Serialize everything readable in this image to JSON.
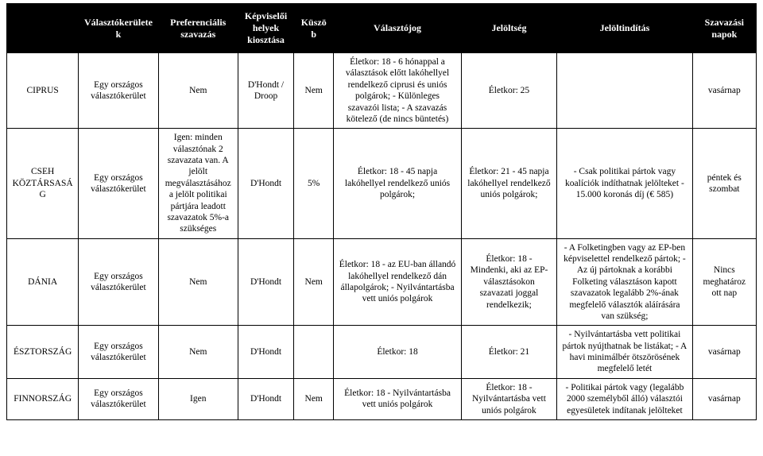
{
  "headers": [
    "",
    "Választókerületek",
    "Preferenciális szavazás",
    "Képviselői helyek kiosztása",
    "Küszöb",
    "Választójog",
    "Jelöltség",
    "Jelöltindítás",
    "Szavazási napok"
  ],
  "rows": [
    {
      "c0": "CIPRUS",
      "c1": "Egy országos választókerület",
      "c2": "Nem",
      "c3": "D'Hondt / Droop",
      "c4": "Nem",
      "c5": "Életkor: 18\n- 6 hónappal a választások előtt lakóhellyel rendelkező ciprusi és uniós polgárok;\n- Különleges szavazói lista;\n- A szavazás kötelező (de nincs büntetés)",
      "c6": "Életkor: 25",
      "c7": "",
      "c8": "vasárnap"
    },
    {
      "c0": "CSEH KÖZTÁRSASÁG",
      "c1": "Egy országos választókerület",
      "c2": "Igen: minden választónak 2 szavazata van. A jelölt megválasztásához a jelölt politikai pártjára leadott szavazatok 5%-a szükséges",
      "c3": "D'Hondt",
      "c4": "5%",
      "c5": "Életkor: 18\n- 45 napja lakóhellyel rendelkező uniós polgárok;",
      "c6": "Életkor: 21\n- 45 napja lakóhellyel rendelkező uniós polgárok;",
      "c7": "- Csak politikai pártok vagy koalíciók indíthatnak jelölteket\n- 15.000 koronás díj (€ 585)",
      "c8": "péntek és szombat"
    },
    {
      "c0": "DÁNIA",
      "c1": "Egy országos választókerület",
      "c2": "Nem",
      "c3": "D'Hondt",
      "c4": "Nem",
      "c5": "Életkor: 18\n- az EU-ban állandó lakóhellyel rendelkező dán állapolgárok;\n- Nyilvántartásba vett uniós polgárok",
      "c6": "Életkor: 18\n- Mindenki, aki az EP-választásokon szavazati joggal rendelkezik;",
      "c7": "- A Folketingben vagy az EP-ben képviselettel rendelkező pártok;\n- Az új pártoknak a korábbi Folketing választáson kapott szavazatok legalább 2%-ának megfelelő választók aláírására van szükség;",
      "c8": "Nincs meghatároz ott nap"
    },
    {
      "c0": "ÉSZTORSZÁG",
      "c1": "Egy országos választókerület",
      "c2": "Nem",
      "c3": "D'Hondt",
      "c4": "",
      "c5": "Életkor: 18",
      "c6": "Életkor: 21",
      "c7": "- Nyilvántartásba vett politikai pártok nyújthatnak be listákat;\n- A havi minimálbér ötszörösének megfelelő letét",
      "c8": "vasárnap"
    },
    {
      "c0": "FINNORSZÁG",
      "c1": "Egy országos választókerület",
      "c2": "Igen",
      "c3": "D'Hondt",
      "c4": "Nem",
      "c5": "Életkor: 18\n- Nyilvántartásba vett uniós polgárok",
      "c6": "Életkor: 18\n- Nyilvántartásba vett uniós polgárok",
      "c7": "- Politikai pártok vagy (legalább 2000 személyből álló) választói egyesületek indítanak jelölteket",
      "c8": "vasárnap"
    }
  ]
}
